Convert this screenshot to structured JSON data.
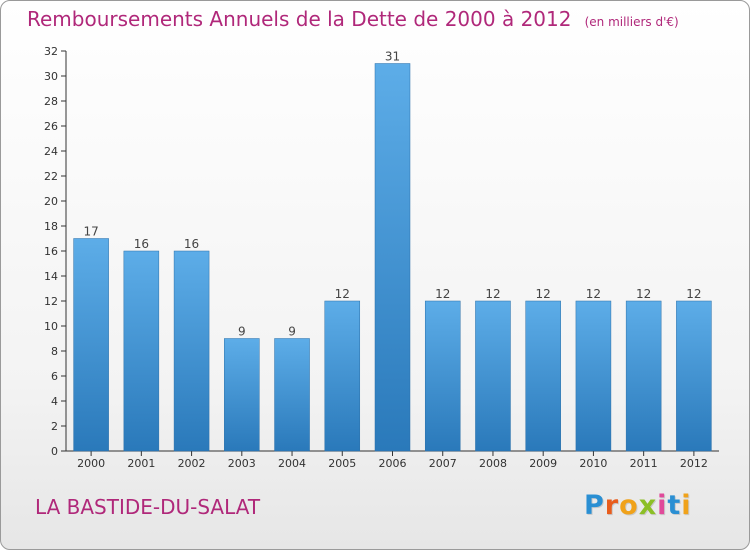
{
  "chart_data": {
    "type": "bar",
    "title": "Remboursements Annuels de la Dette de 2000 à 2012",
    "units": "(en milliers d'€)",
    "categories": [
      "2000",
      "2001",
      "2002",
      "2003",
      "2004",
      "2005",
      "2006",
      "2007",
      "2008",
      "2009",
      "2010",
      "2011",
      "2012"
    ],
    "values": [
      17,
      16,
      16,
      9,
      9,
      12,
      31,
      12,
      12,
      12,
      12,
      12,
      12
    ],
    "ylim": [
      0,
      32
    ],
    "yticks": [
      0,
      2,
      4,
      6,
      8,
      10,
      12,
      14,
      16,
      18,
      20,
      22,
      24,
      26,
      28,
      30,
      32
    ],
    "grid": false,
    "bar_color": "#3f8fd6",
    "title_color": "#b0287a"
  },
  "commune": "LA BASTIDE-DU-SALAT",
  "brand": {
    "letters": [
      "P",
      "r",
      "o",
      "x",
      "i",
      "t",
      "i"
    ],
    "colors": [
      "#2a8fd3",
      "#e85c1c",
      "#f0a21a",
      "#8cbf26",
      "#e04a9a",
      "#2a8fd3",
      "#f0a21a"
    ]
  }
}
